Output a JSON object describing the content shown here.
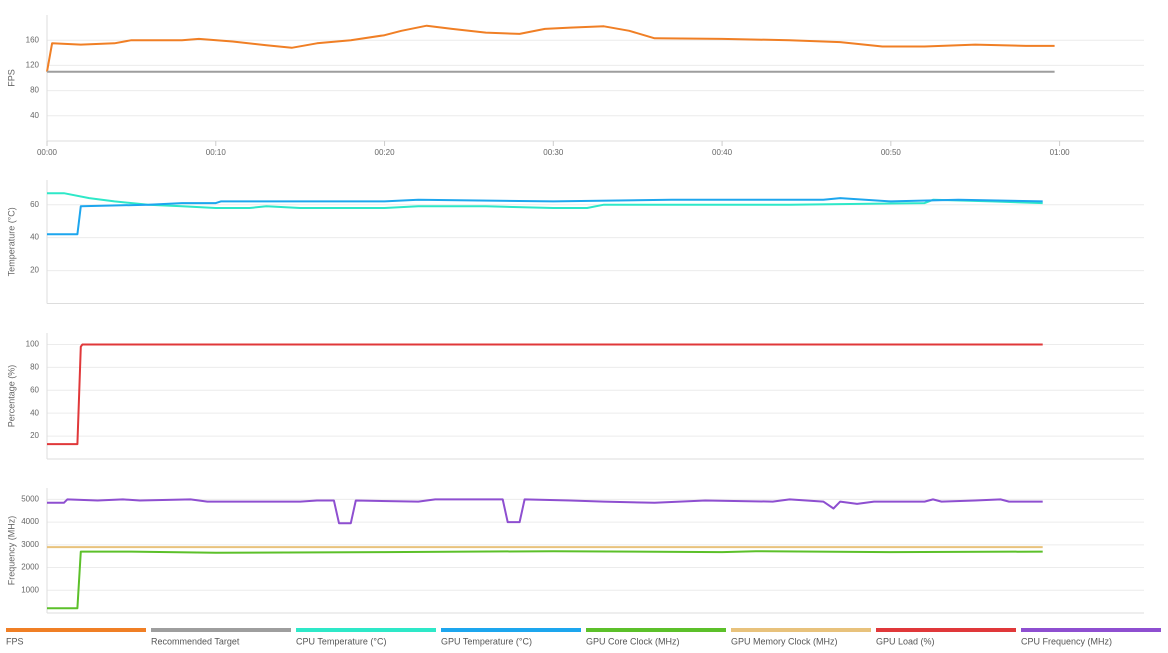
{
  "chart_data": [
    {
      "type": "line",
      "y_label": "FPS",
      "xlim": [
        0,
        65
      ],
      "ylim": [
        0,
        200
      ],
      "yticks": [
        40,
        80,
        120,
        160
      ],
      "grid": true,
      "xticks": [
        {
          "value": 0,
          "label": "00:00"
        },
        {
          "value": 10,
          "label": "00:10"
        },
        {
          "value": 20,
          "label": "00:20"
        },
        {
          "value": 30,
          "label": "00:30"
        },
        {
          "value": 40,
          "label": "00:40"
        },
        {
          "value": 50,
          "label": "00:50"
        },
        {
          "value": 60,
          "label": "01:00"
        }
      ],
      "series": [
        {
          "name": "FPS",
          "color": "#f07f25",
          "x": [
            0,
            0.3,
            2,
            4,
            5,
            8,
            9,
            11,
            13,
            14.5,
            16,
            18,
            20,
            21,
            22.5,
            24,
            26,
            28,
            29.5,
            31,
            33,
            34.5,
            36,
            40,
            44,
            47,
            49.5,
            52,
            55,
            58,
            59.7
          ],
          "values": [
            110,
            155,
            153,
            155,
            160,
            160,
            162,
            158,
            152,
            148,
            155,
            160,
            168,
            175,
            183,
            178,
            172,
            170,
            178,
            180,
            182,
            175,
            163,
            162,
            160,
            157,
            150,
            150,
            153,
            151,
            151
          ]
        },
        {
          "name": "Recommended Target",
          "color": "#9e9e9e",
          "x": [
            0,
            59.7
          ],
          "values": [
            110,
            110
          ]
        }
      ]
    },
    {
      "type": "line",
      "y_label": "Temperature (°C)",
      "xlim": [
        0,
        65
      ],
      "ylim": [
        0,
        75
      ],
      "yticks": [
        20,
        40,
        60
      ],
      "grid": true,
      "series": [
        {
          "name": "CPU Temperature (°C)",
          "color": "#2ee8c8",
          "x": [
            0,
            1,
            2.5,
            4,
            6,
            8,
            10,
            12,
            13,
            15,
            20,
            22,
            26,
            30,
            32,
            33,
            40,
            44,
            52,
            52.5,
            56,
            59
          ],
          "values": [
            67,
            67,
            64,
            62,
            60,
            59,
            58,
            58,
            59,
            58,
            58,
            59,
            59,
            58,
            58,
            60,
            60,
            60,
            61,
            63,
            62,
            61
          ]
        },
        {
          "name": "GPU Temperature (°C)",
          "color": "#1da6ee",
          "x": [
            0,
            1.8,
            2,
            6,
            8,
            10,
            10.3,
            20,
            22,
            30,
            37,
            46,
            47,
            50,
            54,
            59
          ],
          "values": [
            42,
            42,
            59,
            60,
            61,
            61,
            62,
            62,
            63,
            62,
            63,
            63,
            64,
            62,
            63,
            62
          ]
        }
      ]
    },
    {
      "type": "line",
      "y_label": "Percentage (%)",
      "xlim": [
        0,
        65
      ],
      "ylim": [
        0,
        110
      ],
      "yticks": [
        20,
        40,
        60,
        80,
        100
      ],
      "grid": true,
      "series": [
        {
          "name": "GPU Load (%)",
          "color": "#e0383a",
          "x": [
            0,
            1.8,
            2,
            2.1,
            59
          ],
          "values": [
            13,
            13,
            98,
            100,
            100
          ]
        }
      ]
    },
    {
      "type": "line",
      "y_label": "Frequency (MHz)",
      "xlim": [
        0,
        65
      ],
      "ylim": [
        0,
        5500
      ],
      "yticks": [
        1000,
        2000,
        3000,
        4000,
        5000
      ],
      "grid": true,
      "series": [
        {
          "name": "GPU Core Clock (MHz)",
          "color": "#5cc02a",
          "x": [
            0,
            1.8,
            2,
            5,
            10,
            20,
            30,
            40,
            42,
            50,
            59
          ],
          "values": [
            210,
            210,
            2700,
            2700,
            2650,
            2680,
            2720,
            2680,
            2720,
            2680,
            2700
          ]
        },
        {
          "name": "GPU Memory Clock (MHz)",
          "color": "#e8c27c",
          "x": [
            0,
            59
          ],
          "values": [
            2900,
            2900
          ]
        },
        {
          "name": "CPU Frequency (MHz)",
          "color": "#8e4fd0",
          "x": [
            0,
            1,
            1.2,
            3,
            4.5,
            5.5,
            8.5,
            9.5,
            15,
            16,
            17,
            17.3,
            18,
            18.3,
            22,
            23,
            27,
            27.3,
            28,
            28.3,
            31,
            33,
            36,
            39,
            43,
            44,
            46,
            46.6,
            47,
            48,
            49,
            52,
            52.5,
            53,
            55,
            56.5,
            57,
            59
          ],
          "values": [
            4850,
            4850,
            5000,
            4950,
            5000,
            4950,
            5000,
            4900,
            4900,
            4950,
            4950,
            3950,
            3950,
            4950,
            4900,
            5000,
            5000,
            4000,
            4000,
            5000,
            4950,
            4900,
            4850,
            4950,
            4900,
            5000,
            4900,
            4600,
            4900,
            4800,
            4900,
            4900,
            5000,
            4900,
            4950,
            5000,
            4900,
            4900
          ]
        }
      ]
    }
  ]
}
